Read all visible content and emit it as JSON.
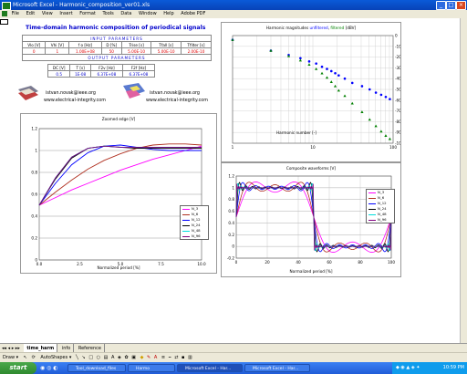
{
  "window": {
    "title": "Microsoft Excel - Harmonic_composition_ver01.xls",
    "min": "_",
    "max": "□",
    "close": "×"
  },
  "menu": [
    "File",
    "Edit",
    "View",
    "Insert",
    "Format",
    "Tools",
    "Data",
    "Window",
    "Help",
    "Adobe PDF"
  ],
  "sheet_title": "Time-domain harmonic composition of periodical signals",
  "input_header": "INPUT PARAMETERS",
  "input_cols": [
    "Vlo [V]",
    "Vhi [V]",
    "f o [Hz]",
    "D [%]",
    "Trise [s]",
    "Tfall [s]",
    "Tfilter [s]"
  ],
  "input_vals": [
    "0",
    "1",
    "1.00E+08",
    "50",
    "5.00E-10",
    "5.00E-10",
    "2.00E-10"
  ],
  "output_header": "OUTPUT PARAMETERS",
  "output_cols": [
    "DC [V]",
    "T [s]",
    "F2v [Hz]",
    "F2f [Hz]"
  ],
  "output_vals": [
    "0.5",
    "1E-08",
    "6.37E+08",
    "6.37E+08"
  ],
  "contact1": {
    "email": "istvan.novak@ieee.org",
    "web": "www.electrical-integrity.com"
  },
  "contact2": {
    "email": "istvan.novak@ieee.org",
    "web": "www.electrical-integrity.com"
  },
  "charts": {
    "zoomed": {
      "title": "Zoomed edge [V]",
      "xlabel": "Normalized period [%]",
      "yticks": [
        "0",
        "0.2",
        "0.4",
        "0.6",
        "0.8",
        "1",
        "1.2"
      ],
      "xticks": [
        "0.0",
        "2.5",
        "5.0",
        "7.5",
        "10.0"
      ],
      "legend": [
        "N_3",
        "N_6",
        "N_12",
        "N_24",
        "N_48",
        "N_96"
      ]
    },
    "harmonic": {
      "title_parts": [
        "Harmonic magnitudes ",
        "unfiltered",
        ", ",
        "filtered",
        " [dBV]"
      ],
      "xlabel": "Harmonic number [-]",
      "yticks": [
        "0",
        "-10",
        "-20",
        "-30",
        "-40",
        "-50",
        "-60",
        "-70",
        "-80",
        "-90",
        "-100"
      ],
      "xticks": [
        "1",
        "10",
        "100"
      ]
    },
    "composite": {
      "title": "Composite waveforms [V]",
      "xlabel": "Normalized period [%]",
      "yticks": [
        "1.2",
        "1",
        "0.8",
        "0.6",
        "0.4",
        "0.2",
        "0",
        "-0.2"
      ],
      "xticks": [
        "0",
        "20",
        "40",
        "60",
        "80",
        "100"
      ],
      "legend": [
        "N_3",
        "N_6",
        "N_12",
        "N_24",
        "N_48",
        "N_96"
      ]
    }
  },
  "chart_data": [
    {
      "type": "line",
      "title": "Zoomed edge [V]",
      "xlabel": "Normalized period [%]",
      "xlim": [
        0,
        10
      ],
      "ylim": [
        0,
        1.2
      ],
      "legend_position": "bottom-right",
      "x": [
        0,
        1,
        2,
        3,
        4,
        5,
        6,
        7,
        8,
        9,
        10
      ],
      "series": [
        {
          "name": "N_3",
          "color": "#ff00ff",
          "values": [
            0.5,
            0.57,
            0.64,
            0.7,
            0.76,
            0.82,
            0.87,
            0.92,
            0.96,
            1.0,
            1.04
          ]
        },
        {
          "name": "N_6",
          "color": "#b03020",
          "values": [
            0.5,
            0.62,
            0.73,
            0.83,
            0.91,
            0.97,
            1.02,
            1.05,
            1.06,
            1.06,
            1.05
          ]
        },
        {
          "name": "N_12",
          "color": "#0000ff",
          "values": [
            0.5,
            0.7,
            0.87,
            0.98,
            1.04,
            1.05,
            1.03,
            1.01,
            1.0,
            1.0,
            1.0
          ]
        },
        {
          "name": "N_24",
          "color": "#000000",
          "values": [
            0.5,
            0.74,
            0.93,
            1.02,
            1.04,
            1.03,
            1.02,
            1.02,
            1.02,
            1.02,
            1.02
          ]
        },
        {
          "name": "N_48",
          "color": "#00dddd",
          "values": [
            0.5,
            0.75,
            0.94,
            1.02,
            1.04,
            1.03,
            1.03,
            1.03,
            1.03,
            1.03,
            1.03
          ]
        },
        {
          "name": "N_96",
          "color": "#7f007f",
          "values": [
            0.5,
            0.75,
            0.94,
            1.02,
            1.04,
            1.03,
            1.03,
            1.03,
            1.03,
            1.03,
            1.03
          ]
        }
      ]
    },
    {
      "type": "scatter",
      "title": "Harmonic magnitudes unfiltered, filtered [dBV]",
      "xlabel": "Harmonic number [-]",
      "xscale": "log",
      "xlim": [
        1,
        100
      ],
      "ylim": [
        -100,
        0
      ],
      "series": [
        {
          "name": "unfiltered",
          "color": "#0000ff",
          "x": [
            1,
            3,
            5,
            7,
            9,
            11,
            13,
            15,
            17,
            19,
            21,
            25,
            31,
            41,
            51,
            61,
            71,
            81,
            91
          ],
          "values": [
            -4,
            -14,
            -18,
            -21,
            -24,
            -26,
            -29,
            -31,
            -33,
            -35,
            -37,
            -40,
            -44,
            -47,
            -50,
            -53,
            -55,
            -57,
            -59
          ]
        },
        {
          "name": "filtered",
          "color": "#008000",
          "x": [
            1,
            3,
            5,
            7,
            9,
            11,
            13,
            15,
            17,
            19,
            21,
            25,
            31,
            41,
            51,
            61,
            71,
            81,
            91
          ],
          "values": [
            -4,
            -14,
            -19,
            -23,
            -27,
            -31,
            -35,
            -39,
            -43,
            -47,
            -51,
            -56,
            -63,
            -71,
            -78,
            -84,
            -89,
            -93,
            -96
          ]
        }
      ]
    },
    {
      "type": "line",
      "title": "Composite waveforms [V]",
      "xlabel": "Normalized period [%]",
      "xlim": [
        0,
        100
      ],
      "ylim": [
        -0.2,
        1.2
      ],
      "legend_position": "right",
      "series": [
        {
          "name": "N_3",
          "color": "#ff00ff",
          "harmonics": 3
        },
        {
          "name": "N_6",
          "color": "#b03020",
          "harmonics": 6
        },
        {
          "name": "N_12",
          "color": "#0000ff",
          "harmonics": 12
        },
        {
          "name": "N_24",
          "color": "#000000",
          "harmonics": 24
        },
        {
          "name": "N_48",
          "color": "#00dddd",
          "harmonics": 48
        },
        {
          "name": "N_96",
          "color": "#7f007f",
          "harmonics": 96
        }
      ]
    }
  ],
  "tabs": [
    "time_harm",
    "info",
    "Reference"
  ],
  "drawbar": {
    "draw": "Draw ▾",
    "autoshapes": "AutoShapes ▾"
  },
  "taskbar": {
    "start": "start",
    "tasks": [
      "Tool_download_files",
      "Harmo",
      "Microsoft Excel - Har...",
      "Microsoft Excel - Har..."
    ],
    "clock": "10:59 PM"
  }
}
